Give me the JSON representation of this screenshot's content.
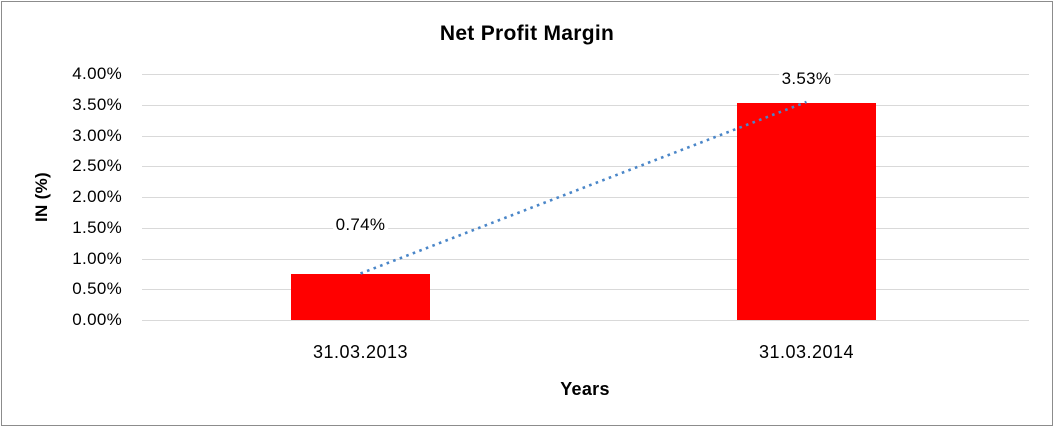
{
  "chart_data": {
    "type": "bar",
    "title": "Net Profit Margin",
    "categories": [
      "31.03.2013",
      "31.03.2014"
    ],
    "values": [
      0.74,
      3.53
    ],
    "data_labels": [
      "0.74%",
      "3.53%"
    ],
    "xlabel": "Years",
    "ylabel": "IN (%)",
    "ylim": [
      0,
      4
    ],
    "ytick_step": 0.5,
    "ytick_labels": [
      "4.00%",
      "3.50%",
      "3.00%",
      "2.50%",
      "2.00%",
      "1.50%",
      "1.00%",
      "0.50%",
      "0.00%"
    ],
    "grid": true,
    "legend": false,
    "bar_color": "#FF0000",
    "gridline_color": "#D9D9D9",
    "trendline": {
      "type": "linear",
      "style": "dotted",
      "color": "#4A86C8"
    }
  }
}
